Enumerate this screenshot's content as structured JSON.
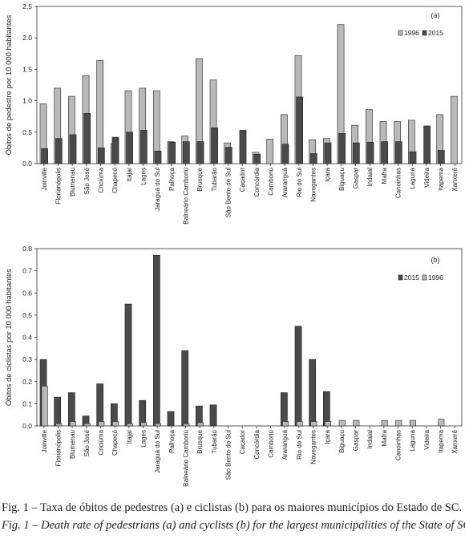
{
  "municipalities": [
    "Joinville",
    "Florianópolis",
    "Blumenau",
    "São José",
    "Criciúma",
    "Chapecó",
    "Itajaí",
    "Lages",
    "Jaraguá do Sul",
    "Palhoça",
    "Balneário Camboriú",
    "Brusque",
    "Tubarão",
    "São Bento do Sul",
    "Caçador",
    "Concórdia",
    "Camboriú",
    "Araranguá",
    "Rio do Sul",
    "Navegantes",
    "Içara",
    "Biguaçu",
    "Gaspar",
    "Indaial",
    "Mafra",
    "Canoinhas",
    "Laguna",
    "Videira",
    "Itapema",
    "Xanxerê"
  ],
  "colors": {
    "y1996": "#b9b9b9",
    "y2015": "#4a4a4a",
    "axis": "#333333"
  },
  "chart_data": [
    {
      "type": "bar",
      "panel_label": "(a)",
      "ylabel": "Óbitos de pedestre por 10 000 habitantes",
      "ylim": [
        0,
        2.5
      ],
      "yticks": [
        "0.0",
        "0.5",
        "1.0",
        "1.5",
        "2.0",
        "2.5"
      ],
      "grid": false,
      "legend_position": "top-right",
      "legend_order": [
        "1996",
        "2015"
      ],
      "series": [
        {
          "name": "1996",
          "values": [
            0.95,
            1.2,
            1.07,
            1.4,
            1.64,
            0.32,
            1.16,
            1.2,
            1.16,
            0.35,
            0.44,
            1.67,
            1.33,
            0.33,
            0.0,
            0.18,
            0.39,
            0.78,
            1.72,
            0.38,
            0.4,
            2.21,
            0.61,
            0.86,
            0.67,
            0.67,
            0.69,
            0.0,
            0.78,
            1.07
          ]
        },
        {
          "name": "2015",
          "values": [
            0.24,
            0.4,
            0.46,
            0.8,
            0.25,
            0.42,
            0.5,
            0.53,
            0.2,
            0.34,
            0.35,
            0.35,
            0.57,
            0.26,
            0.53,
            0.15,
            0.0,
            0.31,
            1.06,
            0.16,
            0.33,
            0.48,
            0.33,
            0.34,
            0.35,
            0.35,
            0.19,
            0.6,
            0.21,
            0.0
          ]
        }
      ]
    },
    {
      "type": "bar",
      "panel_label": "(b)",
      "ylabel": "Óbitos de ciclistas por 10 000 habitantes",
      "ylim": [
        0,
        0.8
      ],
      "yticks": [
        "0.0",
        "0.1",
        "0.2",
        "0.3",
        "0.4",
        "0.5",
        "0.6",
        "0.7",
        "0.8"
      ],
      "grid": false,
      "legend_position": "top-right",
      "legend_order": [
        "2015",
        "1996"
      ],
      "series": [
        {
          "name": "1996",
          "values": [
            0.18,
            0.01,
            0.02,
            0.01,
            0.02,
            0.02,
            0.01,
            0.015,
            0.01,
            0.0,
            0.01,
            0.015,
            0.0,
            0.0,
            0.0,
            0.0,
            0.0,
            0.02,
            0.02,
            0.02,
            0.02,
            0.025,
            0.025,
            0.0,
            0.025,
            0.025,
            0.025,
            0.0,
            0.03,
            0.0
          ]
        },
        {
          "name": "2015",
          "values": [
            0.3,
            0.13,
            0.15,
            0.045,
            0.19,
            0.1,
            0.55,
            0.115,
            0.77,
            0.065,
            0.34,
            0.09,
            0.095,
            0.0,
            0.0,
            0.0,
            0.0,
            0.15,
            0.45,
            0.3,
            0.155,
            0.0,
            0.0,
            0.0,
            0.0,
            0.0,
            0.0,
            0.0,
            0.0,
            0.0
          ]
        }
      ]
    }
  ],
  "caption": {
    "pt": "Fig. 1 – Taxa de óbitos de pedestres (a) e ciclistas (b) para os maiores municípios do Estado de SC.",
    "en": "Fig. 1 – Death rate of pedestrians (a) and cyclists (b) for the largest municipalities of the State of SC."
  }
}
